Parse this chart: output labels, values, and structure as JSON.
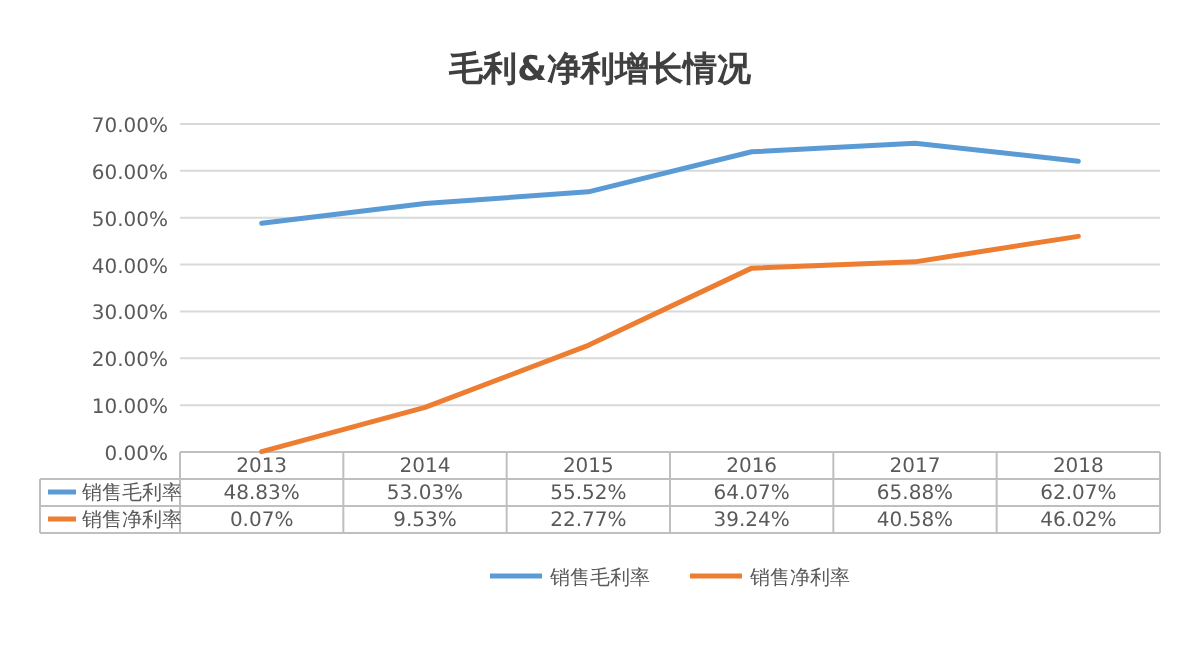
{
  "chart_data": {
    "type": "line",
    "title": "毛利&净利增长情况",
    "categories": [
      "2013",
      "2014",
      "2015",
      "2016",
      "2017",
      "2018"
    ],
    "series": [
      {
        "name": "销售毛利率",
        "color": "#5b9bd5",
        "values": [
          48.83,
          53.03,
          55.52,
          64.07,
          65.88,
          62.07
        ],
        "value_labels": [
          "48.83%",
          "53.03%",
          "55.52%",
          "64.07%",
          "65.88%",
          "62.07%"
        ]
      },
      {
        "name": "销售净利率",
        "color": "#ed7d31",
        "values": [
          0.07,
          9.53,
          22.77,
          39.24,
          40.58,
          46.02
        ],
        "value_labels": [
          "0.07%",
          "9.53%",
          "22.77%",
          "39.24%",
          "40.58%",
          "46.02%"
        ]
      }
    ],
    "ylim": [
      0,
      70
    ],
    "yticks": [
      {
        "value": 0,
        "label": "0.00%"
      },
      {
        "value": 10,
        "label": "10.00%"
      },
      {
        "value": 20,
        "label": "20.00%"
      },
      {
        "value": 30,
        "label": "30.00%"
      },
      {
        "value": 40,
        "label": "40.00%"
      },
      {
        "value": 50,
        "label": "50.00%"
      },
      {
        "value": 60,
        "label": "60.00%"
      },
      {
        "value": 70,
        "label": "70.00%"
      }
    ],
    "grid": "y",
    "legend": "bottom",
    "marker": "none"
  }
}
